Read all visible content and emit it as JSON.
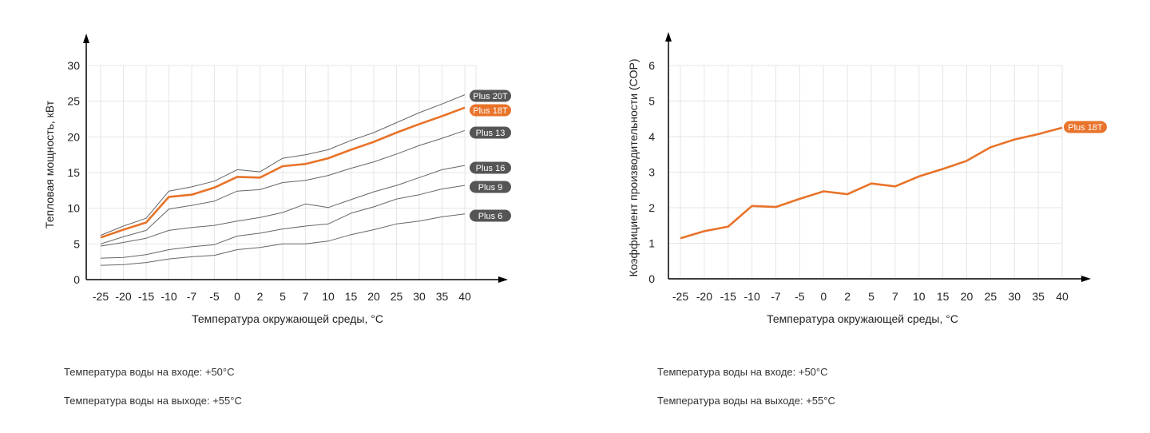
{
  "chart_data": [
    {
      "type": "line",
      "title": "",
      "xlabel": "Температура окружающей среды, °C",
      "ylabel": "Тепловая мощность, кВт",
      "categories": [
        "-25",
        "-20",
        "-15",
        "-10",
        "-7",
        "-5",
        "0",
        "2",
        "5",
        "7",
        "10",
        "15",
        "20",
        "25",
        "30",
        "35",
        "40"
      ],
      "yticks": [
        0,
        5,
        10,
        15,
        20,
        25,
        30
      ],
      "ylim": [
        0,
        30
      ],
      "grid": true,
      "legend": "labels at line ends (right)",
      "series": [
        {
          "name": "Plus 20T",
          "highlight": false,
          "values": [
            6.2,
            7.5,
            8.6,
            12.4,
            13.0,
            13.8,
            15.4,
            15.1,
            17.0,
            17.5,
            18.2,
            19.5,
            20.6,
            22.0,
            23.4,
            24.6,
            25.9
          ]
        },
        {
          "name": "Plus 18T",
          "highlight": true,
          "values": [
            5.9,
            7.0,
            8.0,
            11.6,
            11.9,
            12.9,
            14.4,
            14.3,
            15.9,
            16.2,
            17.0,
            18.2,
            19.3,
            20.6,
            21.8,
            22.9,
            24.1
          ]
        },
        {
          "name": "Plus 13",
          "highlight": false,
          "values": [
            5.0,
            6.0,
            6.9,
            9.9,
            10.4,
            11.0,
            12.4,
            12.6,
            13.6,
            13.9,
            14.6,
            15.6,
            16.5,
            17.6,
            18.8,
            19.8,
            20.9
          ]
        },
        {
          "name": "Plus 16",
          "highlight": false,
          "values": [
            4.7,
            5.2,
            5.8,
            6.9,
            7.3,
            7.6,
            8.2,
            8.7,
            9.4,
            10.6,
            10.1,
            11.2,
            12.3,
            13.2,
            14.3,
            15.4,
            16.0
          ]
        },
        {
          "name": "Plus 9",
          "highlight": false,
          "values": [
            3.0,
            3.1,
            3.5,
            4.2,
            4.6,
            4.9,
            6.1,
            6.5,
            7.1,
            7.5,
            7.8,
            9.3,
            10.2,
            11.3,
            11.9,
            12.7,
            13.2
          ]
        },
        {
          "name": "Plus 6",
          "highlight": false,
          "values": [
            2.0,
            2.1,
            2.4,
            2.9,
            3.2,
            3.4,
            4.2,
            4.5,
            5.0,
            5.0,
            5.4,
            6.3,
            7.0,
            7.8,
            8.2,
            8.8,
            9.2
          ]
        }
      ]
    },
    {
      "type": "line",
      "title": "",
      "xlabel": "Температура окружающей среды, °C",
      "ylabel": "Коэффициент производительности (COP)",
      "categories": [
        "-25",
        "-20",
        "-15",
        "-10",
        "-7",
        "-5",
        "0",
        "2",
        "5",
        "7",
        "10",
        "15",
        "20",
        "25",
        "30",
        "35",
        "40"
      ],
      "yticks": [
        0,
        1,
        2,
        3,
        4,
        5,
        6
      ],
      "ylim": [
        0,
        6
      ],
      "grid": true,
      "legend": "labels at line ends (right)",
      "series": [
        {
          "name": "Plus 18T",
          "highlight": true,
          "values": [
            1.14,
            1.34,
            1.47,
            2.05,
            2.02,
            2.25,
            2.46,
            2.38,
            2.68,
            2.6,
            2.88,
            3.09,
            3.32,
            3.7,
            3.92,
            4.07,
            4.25
          ]
        }
      ]
    }
  ],
  "notes": {
    "left": {
      "water_in": "Температура воды на входе: +50°C",
      "water_out": "Температура воды на выходе: +55°C"
    },
    "right": {
      "water_in": "Температура воды на входе: +50°C",
      "water_out": "Температура воды на выходе: +55°C"
    }
  },
  "colors": {
    "highlight": "#E8732A",
    "line": "#666666",
    "label_bg": "#555555",
    "grid": "#E6E6E6",
    "axis": "#000000"
  }
}
